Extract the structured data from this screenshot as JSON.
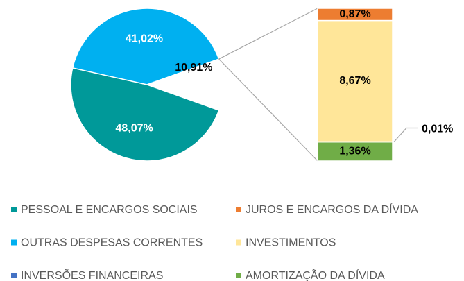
{
  "chart_data": {
    "type": "pie",
    "slices": {
      "categories": [
        "PESSOAL E ENCARGOS SOCIAIS",
        "OUTRAS DESPESAS CORRENTES",
        null
      ],
      "values": [
        48.07,
        41.02,
        10.91
      ],
      "value_labels": [
        "48,07%",
        "41,02%",
        "10,91%"
      ],
      "colors": [
        "#009999",
        "#00b0f0",
        "#ffff00"
      ]
    },
    "bar": {
      "categories": [
        "JUROS E ENCARGOS DA DÍVIDA",
        "INVESTIMENTOS",
        "INVERSÕES FINANCEIRAS",
        "AMORTIZAÇÃO DA DÍVIDA"
      ],
      "values": [
        0.87,
        8.67,
        0.01,
        1.36
      ],
      "value_labels": [
        "0,87%",
        "8,67%",
        "0,01%",
        "1,36%"
      ],
      "colors": [
        "#ed7d31",
        "#ffe699",
        "#4472c4",
        "#70ad47"
      ]
    },
    "legend": "bottom"
  }
}
